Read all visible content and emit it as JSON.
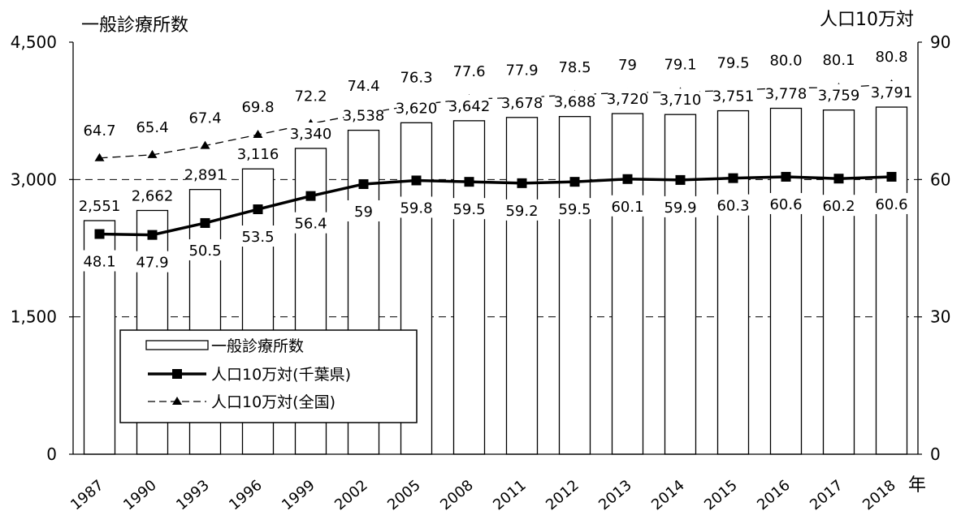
{
  "chart_data": {
    "type": "bar",
    "title": "一般診療所数",
    "right_axis_title": "人口10万対",
    "x_unit": "年",
    "categories": [
      "1987",
      "1990",
      "1993",
      "1996",
      "1999",
      "2002",
      "2005",
      "2008",
      "2011",
      "2012",
      "2013",
      "2014",
      "2015",
      "2016",
      "2017",
      "2018"
    ],
    "ylim_left": [
      0,
      4500
    ],
    "yticks_left": [
      "0",
      "1,500",
      "3,000",
      "4,500"
    ],
    "ylim_right": [
      0,
      90
    ],
    "yticks_right": [
      "0",
      "30",
      "60",
      "90"
    ],
    "grid": "dashed horizontal",
    "legend_position": "bottom-left inside",
    "series": [
      {
        "name": "一般診療所数",
        "type": "bar",
        "axis": "left",
        "values": [
          2551,
          2662,
          2891,
          3116,
          3340,
          3538,
          3620,
          3642,
          3678,
          3688,
          3720,
          3710,
          3751,
          3778,
          3759,
          3791
        ],
        "labels": [
          "2,551",
          "2,662",
          "2,891",
          "3,116",
          "3,340",
          "3,538",
          "3,620",
          "3,642",
          "3,678",
          "3,688",
          "3,720",
          "3,710",
          "3,751",
          "3,778",
          "3,759",
          "3,791"
        ]
      },
      {
        "name": "人口10万対(千葉県)",
        "type": "line",
        "axis": "right",
        "values": [
          48.1,
          47.9,
          50.5,
          53.5,
          56.4,
          59,
          59.8,
          59.5,
          59.2,
          59.5,
          60.1,
          59.9,
          60.3,
          60.6,
          60.2,
          60.6
        ],
        "labels": [
          "48.1",
          "47.9",
          "50.5",
          "53.5",
          "56.4",
          "59",
          "59.8",
          "59.5",
          "59.2",
          "59.5",
          "60.1",
          "59.9",
          "60.3",
          "60.6",
          "60.2",
          "60.6"
        ]
      },
      {
        "name": "人口10万対(全国)",
        "type": "line",
        "axis": "right",
        "values": [
          64.7,
          65.4,
          67.4,
          69.8,
          72.2,
          74.4,
          76.3,
          77.6,
          77.9,
          78.5,
          79,
          79.1,
          79.5,
          80.0,
          80.1,
          80.8
        ],
        "labels": [
          "64.7",
          "65.4",
          "67.4",
          "69.8",
          "72.2",
          "74.4",
          "76.3",
          "77.6",
          "77.9",
          "78.5",
          "79",
          "79.1",
          "79.5",
          "80.0",
          "80.1",
          "80.8"
        ]
      }
    ]
  }
}
